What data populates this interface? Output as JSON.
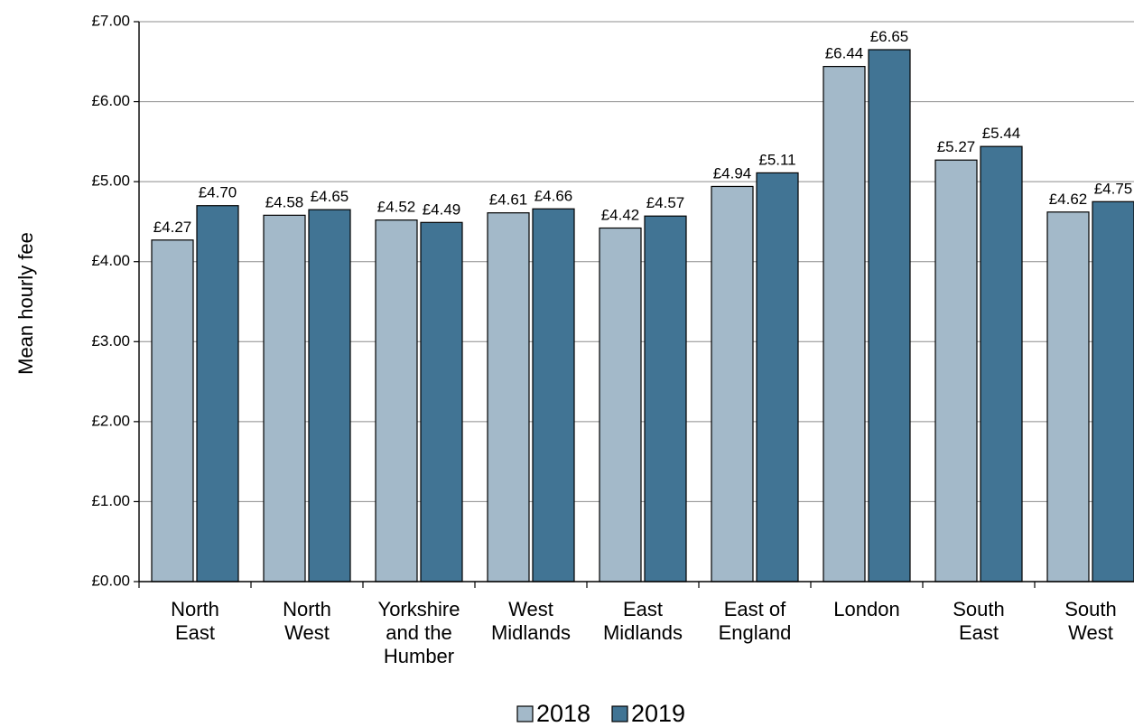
{
  "chart_data": {
    "type": "bar",
    "title": "",
    "xlabel": "",
    "ylabel": "Mean hourly fee",
    "ylim": [
      0,
      7
    ],
    "yticks": [
      0,
      1,
      2,
      3,
      4,
      5,
      6,
      7
    ],
    "ytick_labels": [
      "£0.00",
      "£1.00",
      "£2.00",
      "£3.00",
      "£4.00",
      "£5.00",
      "£6.00",
      "£7.00"
    ],
    "grid": true,
    "legend_position": "bottom",
    "categories": [
      [
        "North",
        "East"
      ],
      [
        "North",
        "West"
      ],
      [
        "Yorkshire",
        "and the",
        "Humber"
      ],
      [
        "West",
        "Midlands"
      ],
      [
        "East",
        "Midlands"
      ],
      [
        "East of",
        "England"
      ],
      [
        "London"
      ],
      [
        "South",
        "East"
      ],
      [
        "South",
        "West"
      ]
    ],
    "series": [
      {
        "name": "2018",
        "color": "#a3b9c9",
        "values": [
          4.27,
          4.58,
          4.52,
          4.61,
          4.42,
          4.94,
          6.44,
          5.27,
          4.62
        ],
        "labels": [
          "£4.27",
          "£4.58",
          "£4.52",
          "£4.61",
          "£4.42",
          "£4.94",
          "£6.44",
          "£5.27",
          "£4.62"
        ]
      },
      {
        "name": "2019",
        "color": "#417494",
        "values": [
          4.7,
          4.65,
          4.49,
          4.66,
          4.57,
          5.11,
          6.65,
          5.44,
          4.75
        ],
        "labels": [
          "£4.70",
          "£4.65",
          "£4.49",
          "£4.66",
          "£4.57",
          "£5.11",
          "£6.65",
          "£5.44",
          "£4.75"
        ]
      }
    ]
  }
}
